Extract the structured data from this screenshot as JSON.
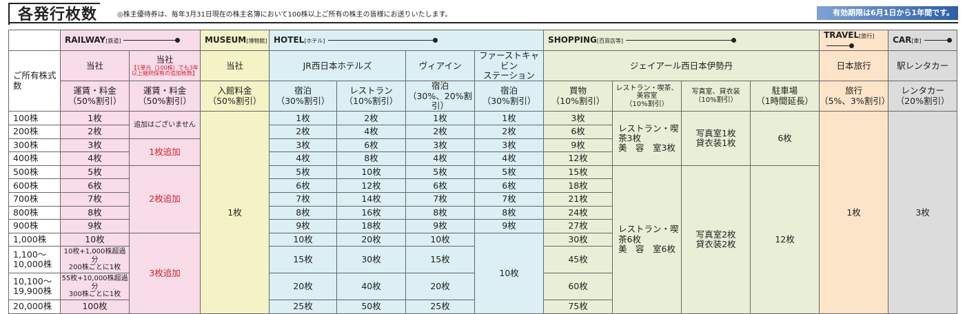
{
  "header": {
    "title": "各発行枚数",
    "note": "◎株主優待券は、毎年3月31日現在の株主名簿において100株以上ご所有の株主の皆様にお送りいたします。",
    "validity": "有効期限は6月1日から1年間です。"
  },
  "groups": [
    {
      "name": "RAILWAY",
      "sub": "[鉄道]"
    },
    {
      "name": "MUSEUM",
      "sub": "[博物館]"
    },
    {
      "name": "HOTEL",
      "sub": "[ホテル]"
    },
    {
      "name": "SHOPPING",
      "sub": "[百貨店等]"
    },
    {
      "name": "TRAVEL",
      "sub": "[旅行]"
    },
    {
      "name": "CAR",
      "sub": "[車]"
    }
  ],
  "holding_label": "ご所有株式数",
  "companies": [
    "当社",
    "当社",
    "当社",
    "JR西日本ホテルズ",
    "ヴィアイン",
    [
      "ファーストキャビン",
      "ステーション"
    ],
    "ジェイアール西日本伊勢丹",
    "日本旅行",
    "駅レンタカー"
  ],
  "company_note": [
    "【1単元（100株）でも3年",
    "以上継続保有の追加枚数】"
  ],
  "services": [
    [
      "運賃・料金",
      "（50%割引）"
    ],
    [
      "運賃・料金",
      "（50%割引）"
    ],
    [
      "入館料金",
      "（50%割引）"
    ],
    [
      "宿泊",
      "（30%割引）"
    ],
    [
      "レストラン",
      "（10%割引）"
    ],
    [
      "宿泊",
      "（30%、20%割引）"
    ],
    [
      "宿泊",
      "（30%割引）"
    ],
    [
      "買物",
      "（10%割引）"
    ],
    [
      "レストラン・喫茶、美容室",
      "（10%割引）"
    ],
    [
      "写真室、貸衣装",
      "（10%割引）"
    ],
    [
      "駐車場",
      "（1時間延長）"
    ],
    [
      "旅行",
      "（5%、3%割引）"
    ],
    [
      "レンタカー",
      "（20%割引）"
    ]
  ],
  "holdings": [
    "100株",
    "200株",
    "300株",
    "400株",
    "500株",
    "600株",
    "700株",
    "800株",
    "900株",
    "1,000株",
    [
      "1,100～",
      "10,000株"
    ],
    [
      "10,100～",
      "19,900株"
    ],
    "20,000株"
  ],
  "railway": [
    "1枚",
    "2枚",
    "3枚",
    "4枚",
    "5枚",
    "6枚",
    "7枚",
    "8枚",
    "9枚",
    "10枚",
    [
      "10枚+1,000株超過分",
      "200株ごとに1枚"
    ],
    [
      "55枚+10,000株超過分",
      "300株ごとに1枚"
    ],
    "100枚"
  ],
  "railway_extra": [
    "追加はございません",
    "1枚追加",
    "2枚追加",
    "3枚追加"
  ],
  "museum": "1枚",
  "hotel_stay": [
    "1枚",
    "2枚",
    "3枚",
    "4枚",
    "5枚",
    "6枚",
    "7枚",
    "8枚",
    "9枚",
    "10枚",
    "15枚",
    "20枚",
    "25枚"
  ],
  "hotel_restaurant": [
    "2枚",
    "4枚",
    "6枚",
    "8枚",
    "10枚",
    "12枚",
    "14枚",
    "16枚",
    "18枚",
    "20枚",
    "30枚",
    "40枚",
    "50枚"
  ],
  "via_inn": [
    "1枚",
    "2枚",
    "3枚",
    "4枚",
    "5枚",
    "6枚",
    "7枚",
    "8枚",
    "9枚",
    "10枚",
    "15枚",
    "20枚",
    "25枚"
  ],
  "first_cabin": [
    "1枚",
    "2枚",
    "3枚",
    "4枚",
    "5枚",
    "6枚",
    "7枚",
    "8枚",
    "9枚",
    "10枚"
  ],
  "shopping": [
    "3枚",
    "6枚",
    "9枚",
    "12枚",
    "15枚",
    "18枚",
    "21枚",
    "24枚",
    "27枚",
    "30枚",
    "45枚",
    "60枚",
    "75枚"
  ],
  "restaurant_cafe": [
    [
      "レストラン・喫茶3枚",
      "美　容　室3枚"
    ],
    [
      "レストラン・喫茶6枚",
      "美　容　室6枚"
    ]
  ],
  "photo": [
    [
      "写真室1枚",
      "貸衣装1枚"
    ],
    [
      "写真室2枚",
      "貸衣装2枚"
    ]
  ],
  "parking": [
    "6枚",
    "12枚"
  ],
  "travel": "1枚",
  "car": "3枚"
}
